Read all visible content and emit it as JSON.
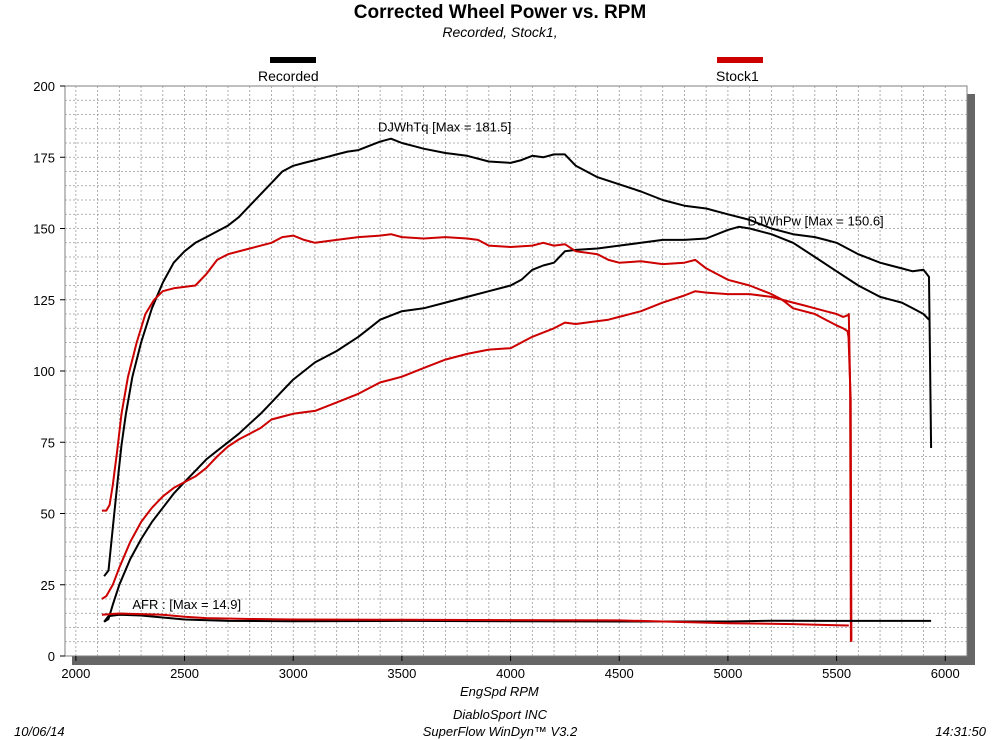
{
  "header": {
    "title": "Corrected Wheel Power vs. RPM",
    "subtitle": "Recorded, Stock1,"
  },
  "footer": {
    "date": "10/06/14",
    "company": "DiabloSport INC",
    "software": "SuperFlow WinDyn™ V3.2",
    "time": "14:31:50"
  },
  "colors": {
    "recorded": "#000000",
    "stock1": "#cc0000",
    "frame": "#7f7f7f",
    "grid": "#999999",
    "shadow": "#666666"
  },
  "chart_data": {
    "type": "line",
    "title": "Corrected Wheel Power vs. RPM",
    "subtitle": "Recorded, Stock1,",
    "xlabel": "EngSpd RPM",
    "ylabel": "",
    "xlim": [
      1950,
      6100
    ],
    "ylim": [
      0,
      200
    ],
    "xticks": [
      2000,
      2500,
      3000,
      3500,
      4000,
      4500,
      5000,
      5500,
      6000
    ],
    "yticks": [
      0,
      25,
      50,
      75,
      100,
      125,
      150,
      175,
      200
    ],
    "grid": true,
    "legend": [
      {
        "name": "Recorded",
        "color": "#000000",
        "position": "top-left"
      },
      {
        "name": "Stock1",
        "color": "#cc0000",
        "position": "top-right"
      }
    ],
    "annotations": [
      {
        "text": "DJWhTq [Max = 181.5]",
        "x": 3390,
        "y": 184
      },
      {
        "text": "DJWhPw [Max = 150.6]",
        "x": 5090,
        "y": 151
      },
      {
        "text": "AFR : [Max = 14.9]",
        "x": 2260,
        "y": 16.5
      }
    ],
    "series": [
      {
        "name": "Recorded",
        "measure": "DJWhTq",
        "color": "#000000",
        "points": [
          [
            2130,
            28
          ],
          [
            2150,
            30
          ],
          [
            2170,
            45
          ],
          [
            2190,
            60
          ],
          [
            2210,
            74
          ],
          [
            2230,
            85
          ],
          [
            2260,
            98
          ],
          [
            2300,
            110
          ],
          [
            2350,
            122
          ],
          [
            2400,
            131
          ],
          [
            2450,
            138
          ],
          [
            2500,
            142
          ],
          [
            2550,
            145
          ],
          [
            2600,
            147
          ],
          [
            2650,
            149
          ],
          [
            2700,
            151
          ],
          [
            2750,
            154
          ],
          [
            2800,
            158
          ],
          [
            2850,
            162
          ],
          [
            2900,
            166
          ],
          [
            2950,
            170
          ],
          [
            3000,
            172
          ],
          [
            3050,
            173
          ],
          [
            3100,
            174
          ],
          [
            3150,
            175
          ],
          [
            3200,
            176
          ],
          [
            3250,
            177
          ],
          [
            3300,
            177.5
          ],
          [
            3350,
            179
          ],
          [
            3400,
            180.5
          ],
          [
            3450,
            181.5
          ],
          [
            3500,
            180
          ],
          [
            3550,
            179
          ],
          [
            3600,
            178
          ],
          [
            3700,
            176.5
          ],
          [
            3800,
            175.5
          ],
          [
            3900,
            173.5
          ],
          [
            4000,
            173
          ],
          [
            4050,
            174
          ],
          [
            4100,
            175.5
          ],
          [
            4150,
            175
          ],
          [
            4200,
            176
          ],
          [
            4250,
            176
          ],
          [
            4300,
            172
          ],
          [
            4400,
            168
          ],
          [
            4500,
            165.5
          ],
          [
            4600,
            163
          ],
          [
            4700,
            160
          ],
          [
            4800,
            158
          ],
          [
            4900,
            157
          ],
          [
            5000,
            155
          ],
          [
            5100,
            153
          ],
          [
            5200,
            150
          ],
          [
            5300,
            148
          ],
          [
            5400,
            147
          ],
          [
            5450,
            146
          ],
          [
            5500,
            145
          ],
          [
            5600,
            141
          ],
          [
            5700,
            138
          ],
          [
            5800,
            136
          ],
          [
            5850,
            135
          ],
          [
            5900,
            135.5
          ],
          [
            5925,
            133
          ],
          [
            5935,
            73
          ]
        ]
      },
      {
        "name": "Recorded",
        "measure": "DJWhPw",
        "color": "#000000",
        "points": [
          [
            2130,
            12
          ],
          [
            2150,
            13
          ],
          [
            2170,
            18
          ],
          [
            2200,
            25
          ],
          [
            2250,
            34
          ],
          [
            2300,
            41
          ],
          [
            2350,
            47
          ],
          [
            2400,
            52
          ],
          [
            2450,
            57
          ],
          [
            2500,
            61
          ],
          [
            2550,
            65
          ],
          [
            2600,
            69
          ],
          [
            2650,
            72
          ],
          [
            2700,
            75
          ],
          [
            2750,
            78
          ],
          [
            2800,
            81.5
          ],
          [
            2850,
            85
          ],
          [
            2900,
            89
          ],
          [
            2950,
            93
          ],
          [
            3000,
            97
          ],
          [
            3050,
            100
          ],
          [
            3100,
            103
          ],
          [
            3200,
            107
          ],
          [
            3300,
            112
          ],
          [
            3350,
            115
          ],
          [
            3400,
            118
          ],
          [
            3450,
            119.5
          ],
          [
            3500,
            121
          ],
          [
            3600,
            122
          ],
          [
            3700,
            124
          ],
          [
            3800,
            126
          ],
          [
            3900,
            128
          ],
          [
            4000,
            130
          ],
          [
            4050,
            132
          ],
          [
            4100,
            135.5
          ],
          [
            4150,
            137
          ],
          [
            4200,
            138
          ],
          [
            4250,
            142
          ],
          [
            4300,
            142.5
          ],
          [
            4400,
            143
          ],
          [
            4500,
            144
          ],
          [
            4600,
            145
          ],
          [
            4700,
            146
          ],
          [
            4800,
            146
          ],
          [
            4900,
            146.5
          ],
          [
            5000,
            149.5
          ],
          [
            5050,
            150.6
          ],
          [
            5100,
            150
          ],
          [
            5200,
            148
          ],
          [
            5300,
            145
          ],
          [
            5400,
            140
          ],
          [
            5500,
            135
          ],
          [
            5600,
            130
          ],
          [
            5700,
            126
          ],
          [
            5800,
            124
          ],
          [
            5850,
            122
          ],
          [
            5900,
            120
          ],
          [
            5925,
            118
          ]
        ]
      },
      {
        "name": "Stock1",
        "measure": "DJWhTq",
        "color": "#cc0000",
        "points": [
          [
            2120,
            51
          ],
          [
            2140,
            51
          ],
          [
            2155,
            53
          ],
          [
            2170,
            60
          ],
          [
            2190,
            72
          ],
          [
            2210,
            85
          ],
          [
            2240,
            98
          ],
          [
            2280,
            110
          ],
          [
            2320,
            120
          ],
          [
            2360,
            125
          ],
          [
            2400,
            128
          ],
          [
            2450,
            129
          ],
          [
            2500,
            129.5
          ],
          [
            2550,
            130
          ],
          [
            2600,
            134
          ],
          [
            2650,
            139
          ],
          [
            2700,
            141
          ],
          [
            2800,
            143
          ],
          [
            2900,
            145
          ],
          [
            2950,
            147
          ],
          [
            3000,
            147.5
          ],
          [
            3050,
            146
          ],
          [
            3100,
            145
          ],
          [
            3200,
            146
          ],
          [
            3300,
            147
          ],
          [
            3400,
            147.5
          ],
          [
            3450,
            148
          ],
          [
            3500,
            147
          ],
          [
            3600,
            146.5
          ],
          [
            3700,
            147
          ],
          [
            3800,
            146.5
          ],
          [
            3850,
            146
          ],
          [
            3900,
            144
          ],
          [
            4000,
            143.5
          ],
          [
            4100,
            144
          ],
          [
            4150,
            145
          ],
          [
            4200,
            144
          ],
          [
            4250,
            144.5
          ],
          [
            4300,
            142
          ],
          [
            4400,
            141
          ],
          [
            4450,
            139
          ],
          [
            4500,
            138
          ],
          [
            4600,
            138.5
          ],
          [
            4700,
            137.5
          ],
          [
            4800,
            138
          ],
          [
            4850,
            139
          ],
          [
            4900,
            136
          ],
          [
            5000,
            132
          ],
          [
            5100,
            130
          ],
          [
            5200,
            127
          ],
          [
            5250,
            125
          ],
          [
            5300,
            122
          ],
          [
            5400,
            120
          ],
          [
            5450,
            118
          ],
          [
            5500,
            116
          ],
          [
            5530,
            115
          ],
          [
            5550,
            114
          ],
          [
            5555,
            112
          ],
          [
            5565,
            90
          ],
          [
            5568,
            5
          ]
        ]
      },
      {
        "name": "Stock1",
        "measure": "DJWhPw",
        "color": "#cc0000",
        "points": [
          [
            2120,
            20
          ],
          [
            2140,
            21
          ],
          [
            2170,
            25
          ],
          [
            2200,
            31
          ],
          [
            2250,
            40
          ],
          [
            2300,
            47
          ],
          [
            2350,
            52
          ],
          [
            2400,
            56
          ],
          [
            2450,
            59
          ],
          [
            2500,
            61
          ],
          [
            2550,
            63
          ],
          [
            2600,
            66
          ],
          [
            2650,
            70
          ],
          [
            2700,
            73.5
          ],
          [
            2750,
            76
          ],
          [
            2800,
            78
          ],
          [
            2850,
            80
          ],
          [
            2900,
            83
          ],
          [
            2950,
            84
          ],
          [
            3000,
            85
          ],
          [
            3050,
            85.5
          ],
          [
            3100,
            86
          ],
          [
            3200,
            89
          ],
          [
            3300,
            92
          ],
          [
            3400,
            96
          ],
          [
            3450,
            97
          ],
          [
            3500,
            98
          ],
          [
            3600,
            101
          ],
          [
            3700,
            104
          ],
          [
            3800,
            106
          ],
          [
            3900,
            107.5
          ],
          [
            4000,
            108
          ],
          [
            4100,
            112
          ],
          [
            4200,
            115
          ],
          [
            4250,
            117
          ],
          [
            4300,
            116.5
          ],
          [
            4400,
            117.5
          ],
          [
            4450,
            118
          ],
          [
            4500,
            119
          ],
          [
            4600,
            121
          ],
          [
            4700,
            124
          ],
          [
            4800,
            126.5
          ],
          [
            4850,
            128
          ],
          [
            4900,
            127.5
          ],
          [
            5000,
            127
          ],
          [
            5100,
            127
          ],
          [
            5200,
            126
          ],
          [
            5300,
            124
          ],
          [
            5350,
            123
          ],
          [
            5400,
            122
          ],
          [
            5450,
            121
          ],
          [
            5500,
            120
          ],
          [
            5530,
            119
          ],
          [
            5550,
            119.5
          ],
          [
            5556,
            120
          ],
          [
            5562,
            95
          ],
          [
            5566,
            5
          ]
        ]
      },
      {
        "name": "Recorded",
        "measure": "AFR",
        "color": "#000000",
        "points": [
          [
            2130,
            12
          ],
          [
            2150,
            14
          ],
          [
            2200,
            14.5
          ],
          [
            2300,
            14.2
          ],
          [
            2400,
            13.5
          ],
          [
            2500,
            12.8
          ],
          [
            2700,
            12.3
          ],
          [
            3000,
            12.2
          ],
          [
            3500,
            12.3
          ],
          [
            4000,
            12.2
          ],
          [
            4500,
            12.1
          ],
          [
            5000,
            12.1
          ],
          [
            5200,
            12.4
          ],
          [
            5500,
            12.3
          ],
          [
            5935,
            12.3
          ]
        ]
      },
      {
        "name": "Stock1",
        "measure": "AFR",
        "color": "#cc0000",
        "points": [
          [
            2120,
            14.5
          ],
          [
            2200,
            14.9
          ],
          [
            2300,
            14.7
          ],
          [
            2400,
            14.5
          ],
          [
            2500,
            13.8
          ],
          [
            2600,
            13.3
          ],
          [
            2800,
            13.0
          ],
          [
            3000,
            12.8
          ],
          [
            3500,
            12.7
          ],
          [
            4000,
            12.6
          ],
          [
            4500,
            12.5
          ],
          [
            5000,
            11.5
          ],
          [
            5300,
            11.2
          ],
          [
            5500,
            10.8
          ],
          [
            5556,
            10.7
          ]
        ]
      }
    ]
  }
}
